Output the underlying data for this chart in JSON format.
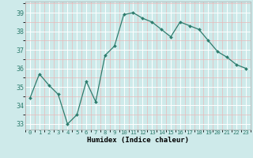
{
  "x": [
    0,
    1,
    2,
    3,
    4,
    5,
    6,
    7,
    8,
    9,
    10,
    11,
    12,
    13,
    14,
    15,
    16,
    17,
    18,
    19,
    20,
    21,
    22,
    23
  ],
  "y": [
    34.4,
    35.7,
    35.1,
    34.6,
    33.0,
    33.5,
    35.3,
    34.2,
    36.7,
    37.2,
    38.9,
    39.0,
    38.7,
    38.5,
    38.1,
    37.7,
    38.5,
    38.3,
    38.1,
    37.5,
    36.9,
    36.6,
    36.2,
    36.0
  ],
  "line_color": "#2e7d6e",
  "marker": "D",
  "marker_size": 2.0,
  "bg_color": "#ceeaea",
  "grid_major_color": "#ffffff",
  "grid_minor_color": "#e8b8b8",
  "xlabel": "Humidex (Indice chaleur)",
  "ylim": [
    32.7,
    39.6
  ],
  "xlim": [
    -0.5,
    23.5
  ],
  "yticks": [
    33,
    34,
    35,
    36,
    37,
    38,
    39
  ],
  "xticks": [
    0,
    1,
    2,
    3,
    4,
    5,
    6,
    7,
    8,
    9,
    10,
    11,
    12,
    13,
    14,
    15,
    16,
    17,
    18,
    19,
    20,
    21,
    22,
    23
  ],
  "xlabel_fontsize": 6.5,
  "ytick_fontsize": 6.0,
  "xtick_fontsize": 5.2,
  "spine_color": "#aaaaaa",
  "tick_color": "#2e7d6e"
}
